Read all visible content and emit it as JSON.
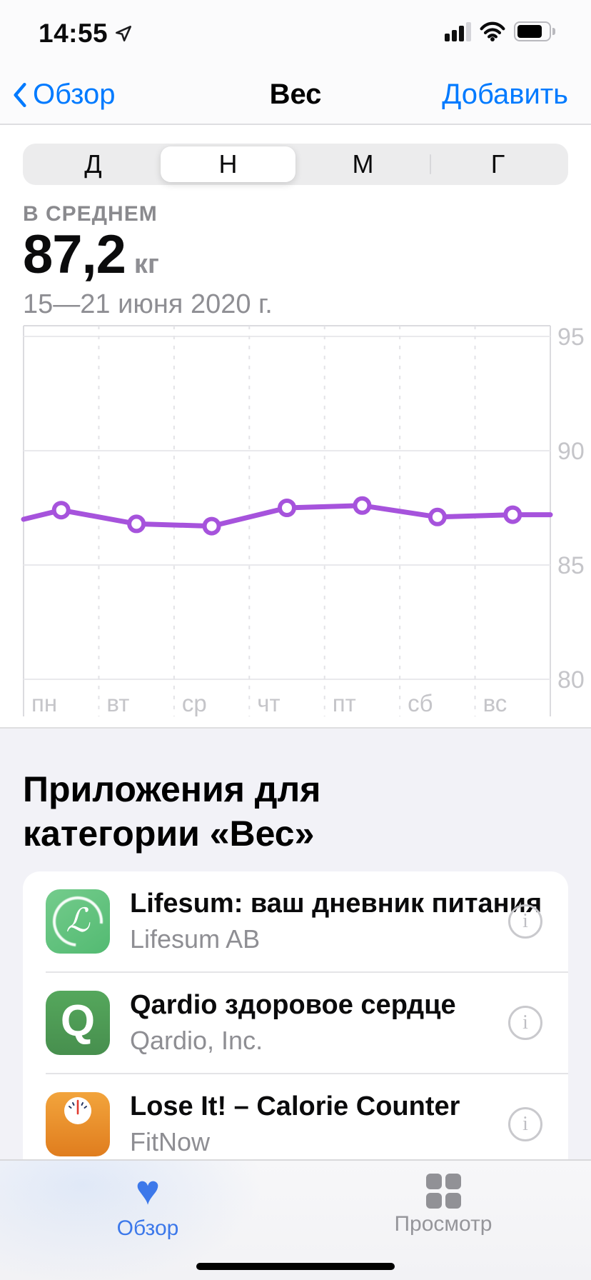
{
  "status_bar": {
    "time": "14:55",
    "signal_bars_filled": 3,
    "signal_bars_total": 4,
    "battery_level": 0.86
  },
  "nav_bar": {
    "back_label": "Обзор",
    "title": "Вес",
    "action_label": "Добавить"
  },
  "segmented_control": {
    "options": [
      "Д",
      "Н",
      "М",
      "Г"
    ],
    "selected": "Н",
    "selected_index": 1
  },
  "summary": {
    "label": "В СРЕДНЕМ",
    "value": "87,2",
    "unit": "кг",
    "period": "15—21 июня 2020 г."
  },
  "chart_data": {
    "type": "line",
    "title": "",
    "xlabel": "",
    "ylabel": "кг",
    "categories": [
      "пн",
      "вт",
      "ср",
      "чт",
      "пт",
      "сб",
      "вс"
    ],
    "values": [
      87.4,
      86.8,
      86.7,
      87.5,
      87.6,
      87.1,
      87.2
    ],
    "edge_start_value": 87.0,
    "edge_end_value": 87.2,
    "yticks": [
      95,
      90,
      85,
      80
    ],
    "ylim": [
      78.9,
      95.5
    ],
    "grid": true,
    "legend": false,
    "line_color": "#A653DC",
    "marker": "open-circle"
  },
  "apps_section": {
    "title": "Приложения для категории «Вес»",
    "info_glyph": "i",
    "apps": [
      {
        "name": "Lifesum: ваш дневник питания",
        "developer": "Lifesum AB",
        "icon_glyph": "ℒ",
        "icon_bg": "#5EC37E"
      },
      {
        "name": "Qardio здоровое сердце",
        "developer": "Qardio, Inc.",
        "icon_glyph": "Q",
        "icon_bg": "#4FA155"
      },
      {
        "name": "Lose It! – Calorie Counter",
        "developer": "FitNow",
        "icon_glyph": "",
        "icon_bg": "#EC9025"
      }
    ]
  },
  "tab_bar": {
    "heart_glyph": "♥",
    "tabs": [
      {
        "label": "Обзор",
        "icon": "heart",
        "active": true
      },
      {
        "label": "Просмотр",
        "icon": "grid",
        "active": false
      }
    ]
  },
  "colors": {
    "accent_blue": "#007AFF",
    "tab_blue": "#3C78EA",
    "chart_purple": "#A653DC"
  }
}
